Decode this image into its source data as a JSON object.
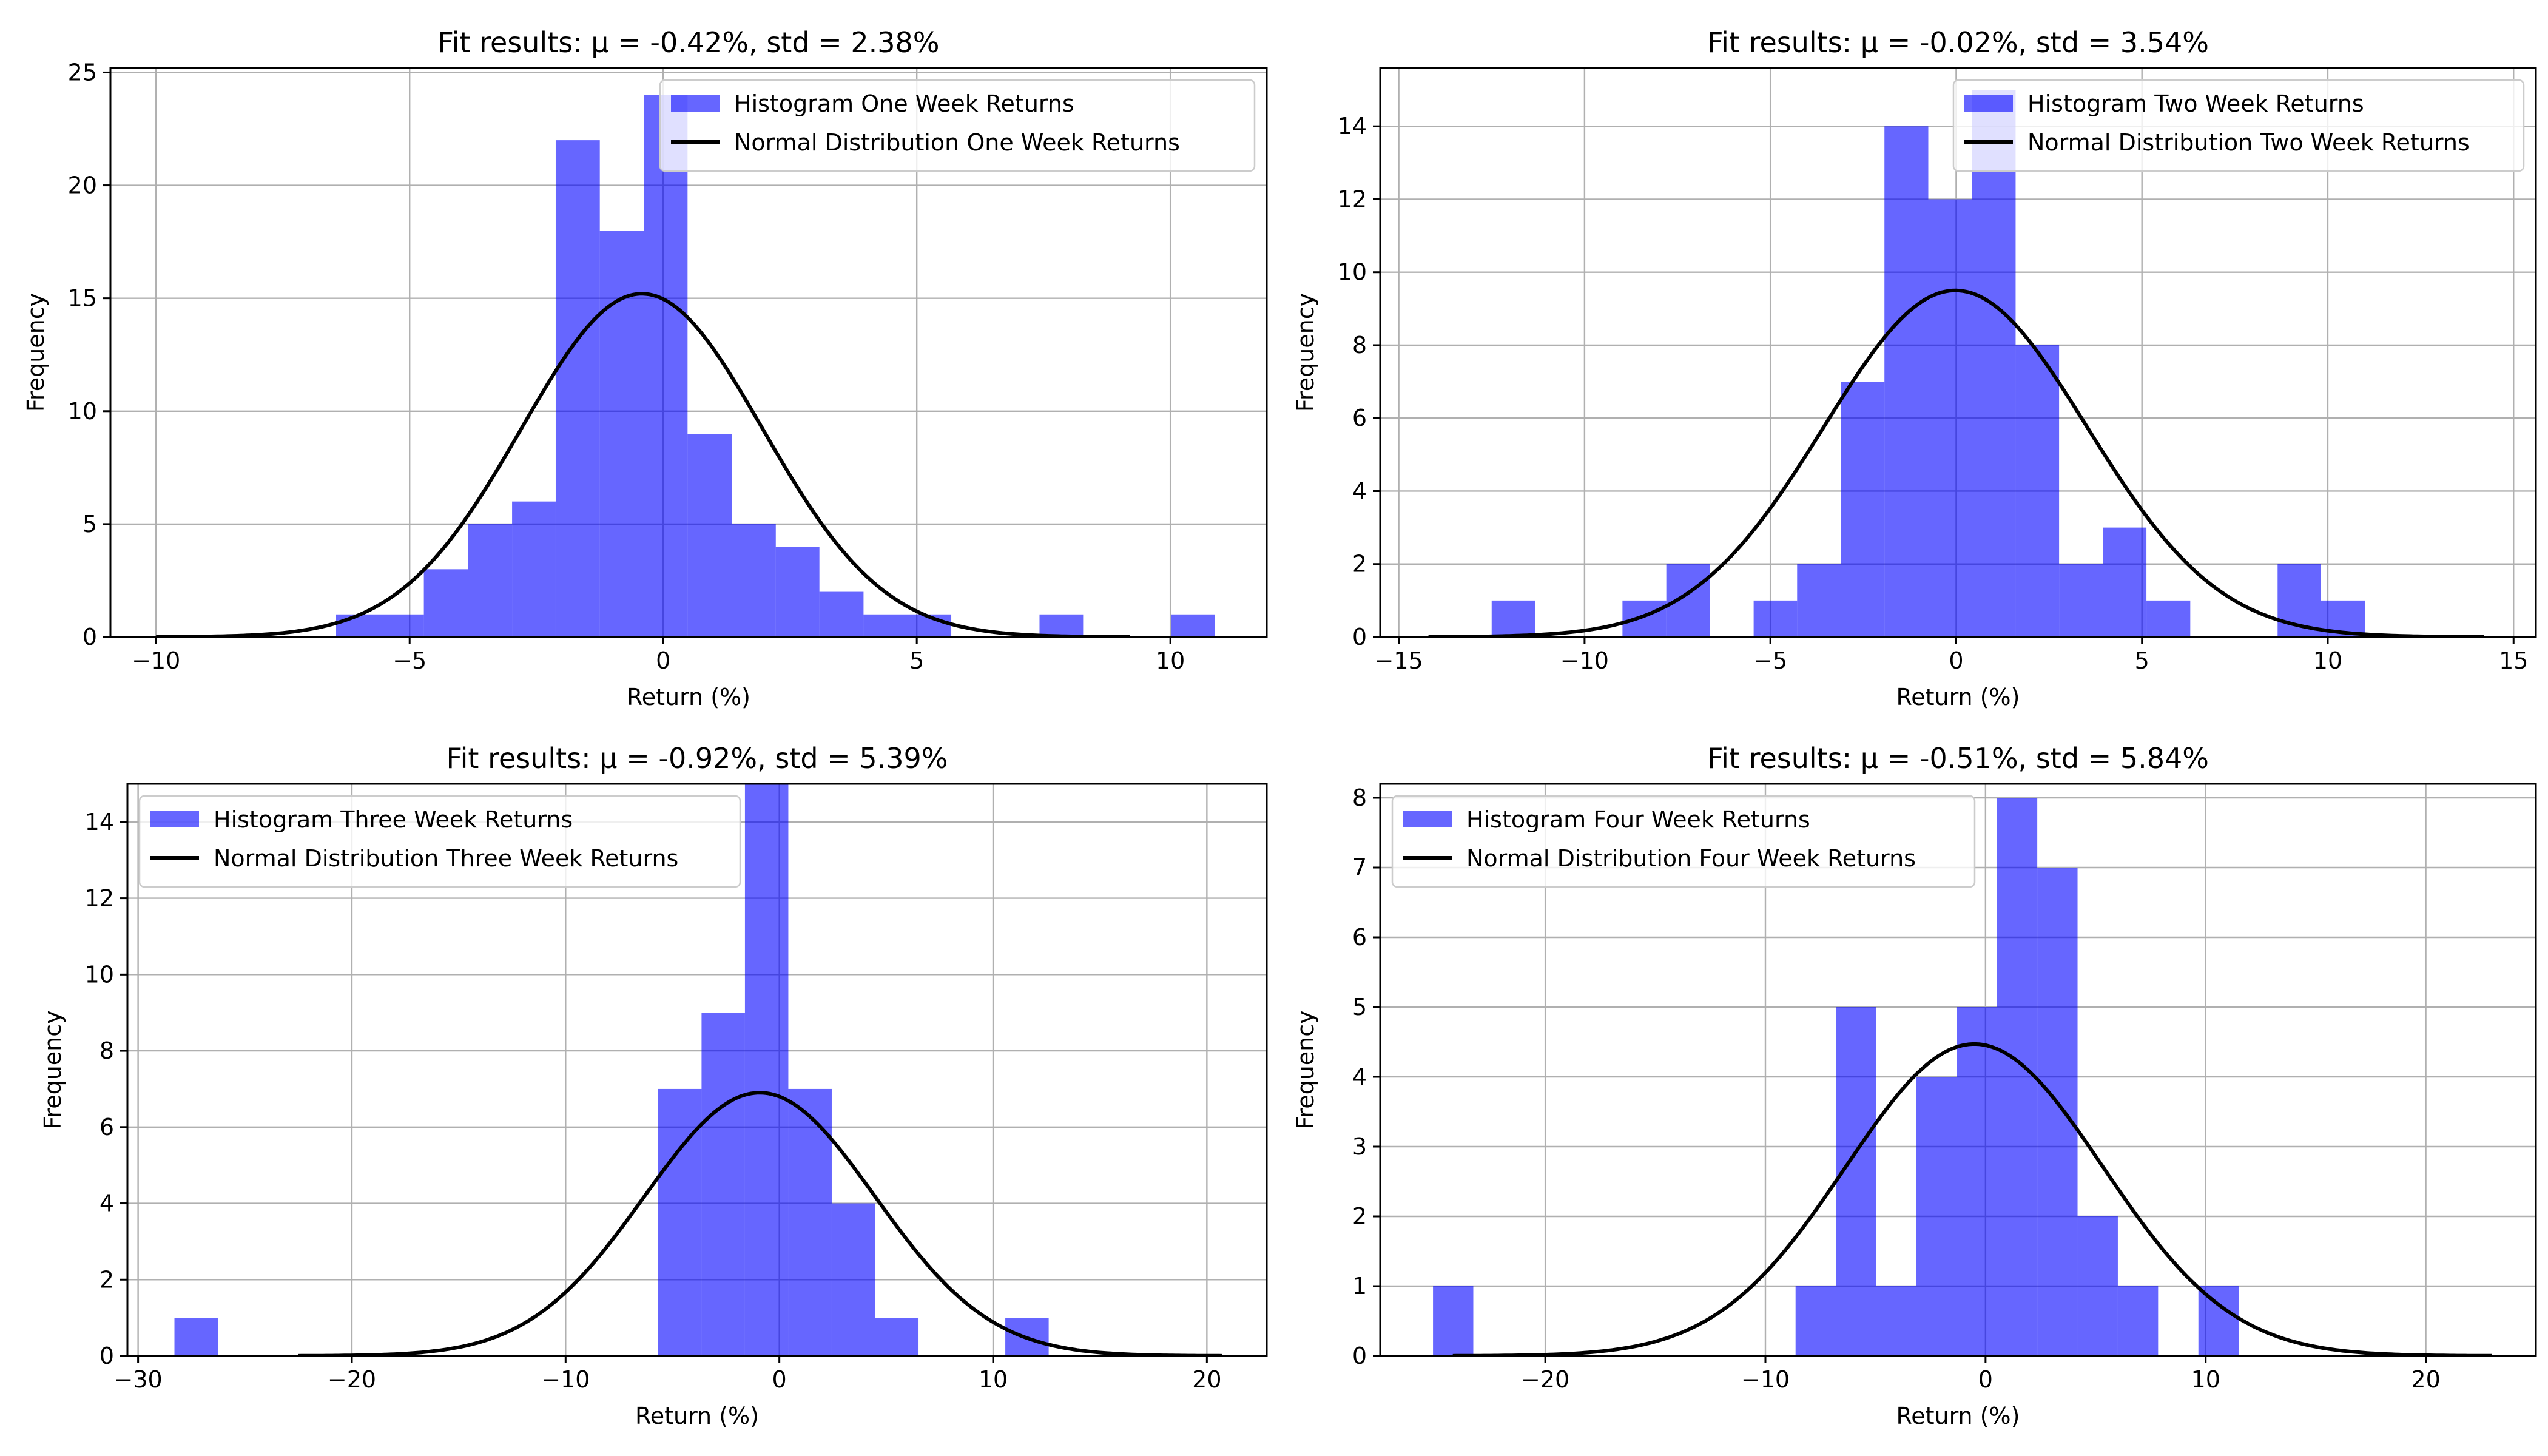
{
  "chart_data": [
    {
      "type": "bar",
      "title": "Fit results: μ = -0.42%, std = 2.38%",
      "xlabel": "Return (%)",
      "ylabel": "Frequency",
      "xlim": [
        -10.9,
        11.9
      ],
      "ylim": [
        0,
        25.2
      ],
      "xticks": [
        -10,
        -5,
        0,
        5,
        10
      ],
      "xtick_labels": [
        "−10",
        "−5",
        "0",
        "5",
        "10"
      ],
      "yticks": [
        0,
        5,
        10,
        15,
        20,
        25
      ],
      "ytick_labels": [
        "0",
        "5",
        "10",
        "15",
        "20",
        "25"
      ],
      "grid": true,
      "legend_position": "upper right",
      "bar_color": "#0000ff",
      "line_color": "#000000",
      "histogram": {
        "name": "Histogram One Week Returns",
        "bin_edges": [
          -6.45,
          -5.58,
          -4.72,
          -3.85,
          -2.98,
          -2.12,
          -1.25,
          -0.38,
          0.48,
          1.35,
          2.22,
          3.08,
          3.95,
          4.82,
          5.68,
          6.55,
          7.42,
          8.28,
          9.15,
          10.02,
          10.88
        ],
        "counts": [
          1,
          1,
          3,
          5,
          6,
          22,
          18,
          24,
          9,
          5,
          4,
          2,
          1,
          1,
          0,
          0,
          1,
          0,
          0,
          1
        ]
      },
      "fit": {
        "name": "Normal Distribution One Week Returns",
        "mu": -0.42,
        "std": 2.38,
        "peak": 15.2,
        "x_range": [
          -10,
          9.2
        ]
      }
    },
    {
      "type": "bar",
      "title": "Fit results: μ = -0.02%, std = 3.54%",
      "xlabel": "Return (%)",
      "ylabel": "Frequency",
      "xlim": [
        -15.5,
        15.6
      ],
      "ylim": [
        0,
        15.6
      ],
      "xticks": [
        -15,
        -10,
        -5,
        0,
        5,
        10,
        15
      ],
      "xtick_labels": [
        "−15",
        "−10",
        "−5",
        "0",
        "5",
        "10",
        "15"
      ],
      "yticks": [
        0,
        2,
        4,
        6,
        8,
        10,
        12,
        14
      ],
      "ytick_labels": [
        "0",
        "2",
        "4",
        "6",
        "8",
        "10",
        "12",
        "14"
      ],
      "grid": true,
      "legend_position": "upper right",
      "bar_color": "#0000ff",
      "line_color": "#000000",
      "histogram": {
        "name": "Histogram Two Week Returns",
        "bin_edges": [
          -12.5,
          -11.33,
          -10.15,
          -8.98,
          -7.8,
          -6.63,
          -5.45,
          -4.28,
          -3.1,
          -1.93,
          -0.75,
          0.42,
          1.6,
          2.77,
          3.95,
          5.12,
          6.3,
          7.47,
          8.65,
          9.82,
          11.0
        ],
        "counts": [
          1,
          0,
          0,
          1,
          2,
          0,
          1,
          2,
          7,
          14,
          12,
          15,
          8,
          2,
          3,
          1,
          0,
          0,
          2,
          1
        ]
      },
      "fit": {
        "name": "Normal Distribution Two Week Returns",
        "mu": -0.02,
        "std": 3.54,
        "peak": 9.5,
        "x_range": [
          -14.2,
          14.2
        ]
      }
    },
    {
      "type": "bar",
      "title": "Fit results: μ = -0.92%, std = 5.39%",
      "xlabel": "Return (%)",
      "ylabel": "Frequency",
      "xlim": [
        -30.5,
        22.8
      ],
      "ylim": [
        0,
        15.0
      ],
      "xticks": [
        -30,
        -20,
        -10,
        0,
        10,
        20
      ],
      "xtick_labels": [
        "−30",
        "−20",
        "−10",
        "0",
        "10",
        "20"
      ],
      "yticks": [
        0,
        2,
        4,
        6,
        8,
        10,
        12,
        14
      ],
      "ytick_labels": [
        "0",
        "2",
        "4",
        "6",
        "8",
        "10",
        "12",
        "14"
      ],
      "grid": true,
      "legend_position": "upper left",
      "bar_color": "#0000ff",
      "line_color": "#000000",
      "histogram": {
        "name": "Histogram Three Week Returns",
        "bin_edges": [
          -28.3,
          -26.27,
          -24.24,
          -22.21,
          -20.18,
          -18.15,
          -16.12,
          -14.09,
          -12.06,
          -10.03,
          -8.0,
          -5.67,
          -3.64,
          -1.61,
          0.42,
          2.45,
          4.48,
          6.51,
          8.54,
          10.57,
          12.6
        ],
        "counts": [
          1,
          0,
          0,
          0,
          0,
          0,
          0,
          0,
          0,
          0,
          0,
          7,
          9,
          15,
          7,
          4,
          1,
          0,
          0,
          1
        ]
      },
      "fit": {
        "name": "Normal Distribution Three Week Returns",
        "mu": -0.92,
        "std": 5.39,
        "peak": 6.9,
        "x_range": [
          -22.5,
          20.7
        ]
      }
    },
    {
      "type": "bar",
      "title": "Fit results: μ = -0.51%, std = 5.84%",
      "xlabel": "Return (%)",
      "ylabel": "Frequency",
      "xlim": [
        -27.5,
        25.0
      ],
      "ylim": [
        0,
        8.2
      ],
      "xticks": [
        -20,
        -10,
        0,
        10,
        20
      ],
      "xtick_labels": [
        "−20",
        "−10",
        "0",
        "10",
        "20"
      ],
      "yticks": [
        0,
        1,
        2,
        3,
        4,
        5,
        6,
        7,
        8
      ],
      "ytick_labels": [
        "0",
        "1",
        "2",
        "3",
        "4",
        "5",
        "6",
        "7",
        "8"
      ],
      "grid": true,
      "legend_position": "upper left",
      "bar_color": "#0000ff",
      "line_color": "#000000",
      "histogram": {
        "name": "Histogram Four Week Returns",
        "bin_edges": [
          -25.1,
          -23.27,
          -21.44,
          -19.61,
          -17.78,
          -15.95,
          -14.12,
          -12.29,
          -10.46,
          -8.63,
          -6.8,
          -4.97,
          -3.14,
          -1.31,
          0.52,
          2.35,
          4.18,
          6.01,
          7.84,
          9.67,
          11.5
        ],
        "counts": [
          1,
          0,
          0,
          0,
          0,
          0,
          0,
          0,
          0,
          1,
          5,
          1,
          4,
          5,
          8,
          7,
          2,
          1,
          0,
          1
        ]
      },
      "fit": {
        "name": "Normal Distribution Four Week Returns",
        "mu": -0.51,
        "std": 5.84,
        "peak": 4.47,
        "x_range": [
          -24.2,
          23.0
        ]
      }
    }
  ]
}
